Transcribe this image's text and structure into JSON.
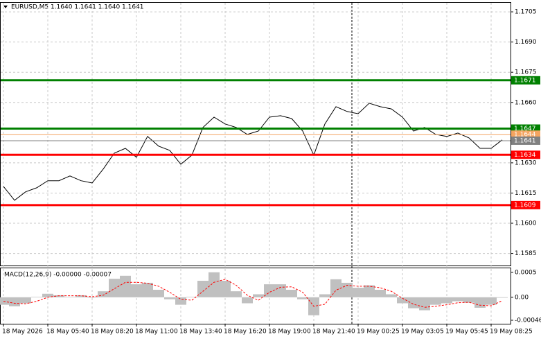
{
  "chart_data": [
    {
      "type": "line",
      "title": "EURUSD,M5  1.1640 1.1641 1.1640 1.1641",
      "categories": [
        "18 May 2026",
        null,
        null,
        null,
        "18 May 05:40",
        null,
        null,
        null,
        "18 May 08:20",
        null,
        null,
        null,
        "18 May 11:00",
        null,
        null,
        null,
        "18 May 13:40",
        null,
        null,
        null,
        "18 May 16:20",
        null,
        null,
        null,
        "18 May 19:00",
        null,
        null,
        null,
        "18 May 21:40",
        null,
        null,
        null,
        "19 May 00:25",
        null,
        null,
        null,
        "19 May 03:05",
        null,
        null,
        null,
        "19 May 05:45",
        null,
        null,
        null,
        "19 May 08:25",
        null
      ],
      "values": [
        1.16183,
        1.16114,
        1.16156,
        1.16176,
        1.16211,
        1.16211,
        1.16235,
        1.16211,
        1.162,
        1.16269,
        1.16348,
        1.16372,
        1.16328,
        1.16431,
        1.16383,
        1.16362,
        1.16293,
        1.16338,
        1.16476,
        1.16527,
        1.16493,
        1.16476,
        1.16441,
        1.16458,
        1.16527,
        1.16534,
        1.1652,
        1.16458,
        1.16338,
        1.16493,
        1.16579,
        1.16555,
        1.16544,
        1.16596,
        1.16579,
        1.16568,
        1.16527,
        1.16458,
        1.16476,
        1.16441,
        1.16431,
        1.16448,
        1.16424,
        1.16372,
        1.16372,
        1.16414
      ],
      "color": "#000000",
      "levels": [
        {
          "value": 1.1671,
          "color": "#008000"
        },
        {
          "value": 1.1647,
          "color": "#008000"
        },
        {
          "value": 1.1644,
          "color": "#f4a460"
        },
        {
          "value": 1.1641,
          "color": "#808080"
        },
        {
          "value": 1.1634,
          "color": "#ff0000"
        },
        {
          "value": 1.1609,
          "color": "#ff0000"
        }
      ],
      "ylim": [
        1.1579,
        1.17095
      ],
      "yticks": [
        1.1705,
        {
          "value": 1.169,
          "label": "1.1690"
        },
        1.1675,
        {
          "value": 1.166,
          "label": "1.1660"
        },
        {
          "value": 1.163,
          "label": "1.1630"
        },
        1.1615,
        {
          "value": 1.16,
          "label": "1.1600"
        },
        1.1585
      ],
      "grid": true
    },
    {
      "type": "bar",
      "title": "MACD(12,26,9) -0.00000 -0.00007",
      "values": [
        -0.00015,
        -0.00018,
        -0.00012,
        1e-05,
        7e-05,
        4e-05,
        1e-05,
        4e-05,
        -1e-05,
        0.00012,
        0.00037,
        0.00043,
        0.00026,
        0.00029,
        0.00015,
        -4e-05,
        -0.00015,
        1e-05,
        0.00033,
        0.0005,
        0.00033,
        0.00012,
        -0.00012,
        6e-05,
        0.00026,
        0.00026,
        0.00015,
        -4e-05,
        -0.00036,
        6e-05,
        0.00036,
        0.00029,
        0.00019,
        0.00024,
        0.00015,
        6e-05,
        -0.00012,
        -0.00022,
        -0.00026,
        -0.00015,
        -0.00012,
        -8e-05,
        -0.00011,
        -0.00021,
        -0.00015,
        -1e-05
      ],
      "color": "#c0c0c0",
      "line_values": [
        -8e-05,
        -0.00012,
        -0.00013,
        -8e-05,
        0.0,
        3e-05,
        3e-05,
        3e-05,
        1e-05,
        4e-05,
        0.00017,
        0.0003,
        0.0003,
        0.00028,
        0.00022,
        0.0001,
        -4e-05,
        -6e-05,
        0.00012,
        0.0003,
        0.00036,
        0.00024,
        4e-05,
        -6e-05,
        0.0001,
        0.0002,
        0.00021,
        0.0001,
        -0.00018,
        -0.00014,
        0.00014,
        0.00024,
        0.00022,
        0.00022,
        0.00019,
        0.00012,
        -2e-05,
        -0.00014,
        -0.0002,
        -0.00018,
        -0.00015,
        -0.00011,
        -0.0001,
        -0.00016,
        -0.00017,
        -7e-05
      ],
      "line_color": "#ff0000",
      "ylim": [
        -0.00053,
        0.00058
      ],
      "yticks": [
        0.0005,
        {
          "value": 0,
          "label": "0.00"
        },
        -0.00046
      ]
    }
  ]
}
